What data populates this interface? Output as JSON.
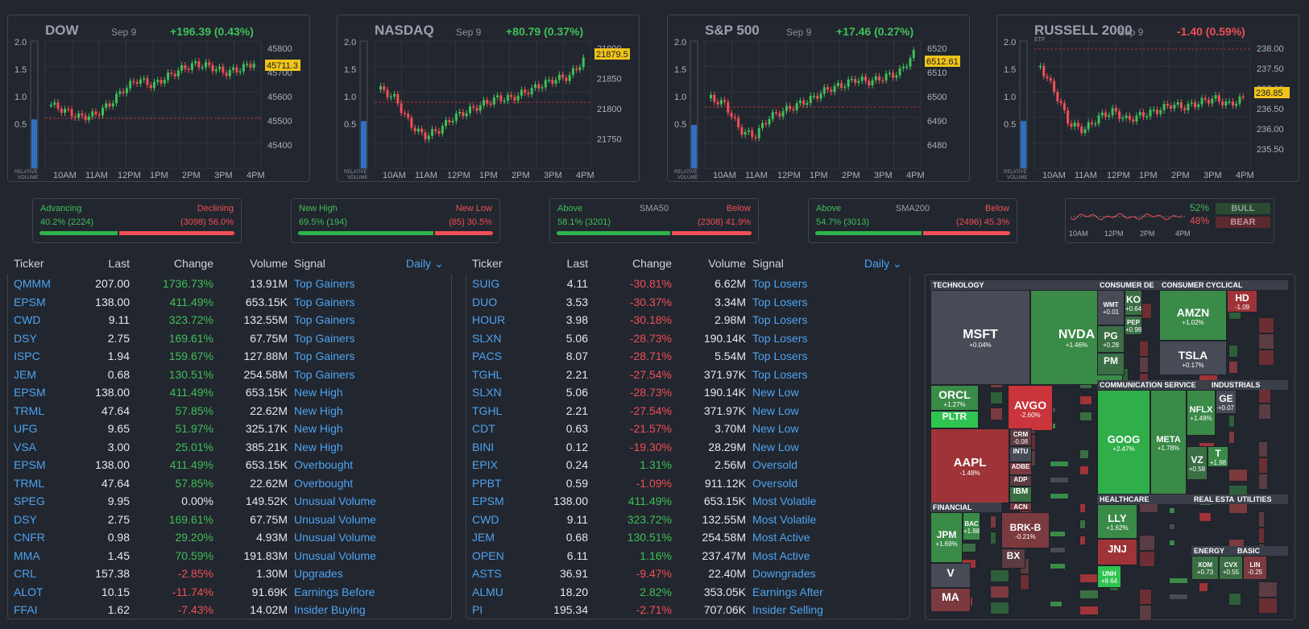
{
  "charts": [
    {
      "name": "DOW",
      "date": "Sep 9",
      "change": "+196.39 (0.43%)",
      "dir": "up",
      "etf": "",
      "price": "45711.3",
      "yticks": [
        "45800",
        "45700",
        "45600",
        "45500",
        "45400"
      ],
      "vticks": [
        "2.0",
        "1.5",
        "1.0",
        "0.5"
      ],
      "xticks": [
        "10AM",
        "11AM",
        "12PM",
        "1PM",
        "2PM",
        "3PM",
        "4PM"
      ],
      "vlabel": "RELATIVE VOLUME",
      "vol_level": 0.62
    },
    {
      "name": "NASDAQ",
      "date": "Sep 9",
      "change": "+80.79 (0.37%)",
      "dir": "up",
      "etf": "",
      "price": "21879.5",
      "yticks": [
        "21900",
        "21850",
        "21800",
        "21750"
      ],
      "vticks": [
        "2.0",
        "1.5",
        "1.0",
        "0.5"
      ],
      "xticks": [
        "10AM",
        "11AM",
        "12PM",
        "1PM",
        "2PM",
        "3PM",
        "4PM"
      ],
      "vlabel": "RELATIVE VOLUME",
      "vol_level": 0.6
    },
    {
      "name": "S&P 500",
      "date": "Sep 9",
      "change": "+17.46 (0.27%)",
      "dir": "up",
      "etf": "",
      "price": "6512.61",
      "yticks": [
        "6520",
        "6510",
        "6500",
        "6490",
        "6480"
      ],
      "vticks": [
        "2.0",
        "1.5",
        "1.0",
        "0.5"
      ],
      "xticks": [
        "10AM",
        "11AM",
        "12PM",
        "1PM",
        "2PM",
        "3PM",
        "4PM"
      ],
      "vlabel": "RELATIVE VOLUME",
      "vol_level": 0.55
    },
    {
      "name": "RUSSELL 2000",
      "date": "Sep 9",
      "change": "-1.40 (0.59%)",
      "dir": "down",
      "etf": "ETF",
      "price": "236.85",
      "yticks": [
        "238.00",
        "237.50",
        "237.00",
        "236.50",
        "236.00",
        "235.50"
      ],
      "vticks": [
        "2.0",
        "1.5",
        "1.0",
        "0.5"
      ],
      "xticks": [
        "10AM",
        "11AM",
        "12PM",
        "1PM",
        "2PM",
        "3PM",
        "4PM"
      ],
      "vlabel": "RELATIVE VOLUME",
      "vol_level": 0.6
    }
  ],
  "breadth": [
    {
      "left_label": "Advancing",
      "left_val": "40.2% (2224)",
      "center": "",
      "right_label": "Declining",
      "right_val": "(3098) 56.0%",
      "pct": 40.2
    },
    {
      "left_label": "New High",
      "left_val": "69.5% (194)",
      "center": "",
      "right_label": "New Low",
      "right_val": "(85) 30.5%",
      "pct": 69.5
    },
    {
      "left_label": "Above",
      "left_val": "58.1% (3201)",
      "center": "SMA50",
      "right_label": "Below",
      "right_val": "(2308) 41.9%",
      "pct": 58.1
    },
    {
      "left_label": "Above",
      "left_val": "54.7% (3013)",
      "center": "SMA200",
      "right_label": "Below",
      "right_val": "(2496) 45.3%",
      "pct": 54.7
    }
  ],
  "sentiment": {
    "bull_pct": "52%",
    "bear_pct": "48%",
    "bull": "BULL",
    "bear": "BEAR",
    "xticks": [
      "10AM",
      "12PM",
      "2PM",
      "4PM"
    ]
  },
  "table_headers": {
    "ticker": "Ticker",
    "last": "Last",
    "change": "Change",
    "volume": "Volume",
    "signal": "Signal",
    "period": "Daily"
  },
  "left_table": [
    [
      "QMMM",
      "207.00",
      "1736.73%",
      "13.91M",
      "Top Gainers",
      "up"
    ],
    [
      "EPSM",
      "138.00",
      "411.49%",
      "653.15K",
      "Top Gainers",
      "up"
    ],
    [
      "CWD",
      "9.11",
      "323.72%",
      "132.55M",
      "Top Gainers",
      "up"
    ],
    [
      "DSY",
      "2.75",
      "169.61%",
      "67.75M",
      "Top Gainers",
      "up"
    ],
    [
      "ISPC",
      "1.94",
      "159.67%",
      "127.88M",
      "Top Gainers",
      "up"
    ],
    [
      "JEM",
      "0.68",
      "130.51%",
      "254.58M",
      "Top Gainers",
      "up"
    ],
    [
      "EPSM",
      "138.00",
      "411.49%",
      "653.15K",
      "New High",
      "up"
    ],
    [
      "TRML",
      "47.64",
      "57.85%",
      "22.62M",
      "New High",
      "up"
    ],
    [
      "UFG",
      "9.65",
      "51.97%",
      "325.17K",
      "New High",
      "up"
    ],
    [
      "VSA",
      "3.00",
      "25.01%",
      "385.21K",
      "New High",
      "up"
    ],
    [
      "EPSM",
      "138.00",
      "411.49%",
      "653.15K",
      "Overbought",
      "up"
    ],
    [
      "TRML",
      "47.64",
      "57.85%",
      "22.62M",
      "Overbought",
      "up"
    ],
    [
      "SPEG",
      "9.95",
      "0.00%",
      "149.52K",
      "Unusual Volume",
      "flat"
    ],
    [
      "DSY",
      "2.75",
      "169.61%",
      "67.75M",
      "Unusual Volume",
      "up"
    ],
    [
      "CNFR",
      "0.98",
      "29.20%",
      "4.93M",
      "Unusual Volume",
      "up"
    ],
    [
      "MMA",
      "1.45",
      "70.59%",
      "191.83M",
      "Unusual Volume",
      "up"
    ],
    [
      "CRL",
      "157.38",
      "-2.85%",
      "1.30M",
      "Upgrades",
      "down"
    ],
    [
      "ALOT",
      "10.15",
      "-11.74%",
      "91.69K",
      "Earnings Before",
      "down"
    ],
    [
      "FFAI",
      "1.62",
      "-7.43%",
      "14.02M",
      "Insider Buying",
      "down"
    ]
  ],
  "right_table": [
    [
      "SUIG",
      "4.11",
      "-30.81%",
      "6.62M",
      "Top Losers",
      "down"
    ],
    [
      "DUO",
      "3.53",
      "-30.37%",
      "3.34M",
      "Top Losers",
      "down"
    ],
    [
      "HOUR",
      "3.98",
      "-30.18%",
      "2.98M",
      "Top Losers",
      "down"
    ],
    [
      "SLXN",
      "5.06",
      "-28.73%",
      "190.14K",
      "Top Losers",
      "down"
    ],
    [
      "PACS",
      "8.07",
      "-28.71%",
      "5.54M",
      "Top Losers",
      "down"
    ],
    [
      "TGHL",
      "2.21",
      "-27.54%",
      "371.97K",
      "Top Losers",
      "down"
    ],
    [
      "SLXN",
      "5.06",
      "-28.73%",
      "190.14K",
      "New Low",
      "down"
    ],
    [
      "TGHL",
      "2.21",
      "-27.54%",
      "371.97K",
      "New Low",
      "down"
    ],
    [
      "CDT",
      "0.63",
      "-21.57%",
      "3.70M",
      "New Low",
      "down"
    ],
    [
      "BINI",
      "0.12",
      "-19.30%",
      "28.29M",
      "New Low",
      "down"
    ],
    [
      "EPIX",
      "0.24",
      "1.31%",
      "2.56M",
      "Oversold",
      "up"
    ],
    [
      "PPBT",
      "0.59",
      "-1.09%",
      "911.12K",
      "Oversold",
      "down"
    ],
    [
      "EPSM",
      "138.00",
      "411.49%",
      "653.15K",
      "Most Volatile",
      "up"
    ],
    [
      "CWD",
      "9.11",
      "323.72%",
      "132.55M",
      "Most Volatile",
      "up"
    ],
    [
      "JEM",
      "0.68",
      "130.51%",
      "254.58M",
      "Most Active",
      "up"
    ],
    [
      "OPEN",
      "6.11",
      "1.16%",
      "237.47M",
      "Most Active",
      "up"
    ],
    [
      "ASTS",
      "36.91",
      "-9.47%",
      "22.40M",
      "Downgrades",
      "down"
    ],
    [
      "ALMU",
      "18.20",
      "2.82%",
      "353.05K",
      "Earnings After",
      "up"
    ],
    [
      "PI",
      "195.34",
      "-2.71%",
      "707.06K",
      "Insider Selling",
      "down"
    ]
  ],
  "colors": {
    "up": "#3fbf58",
    "down": "#ef4f55",
    "link": "#4ea3f0",
    "bg": "#22262f"
  },
  "heatmap": {
    "sectors": [
      "TECHNOLOGY",
      "CONSUMER DE",
      "CONSUMER CYCLICAL",
      "COMMUNICATION SERVICE",
      "INDUSTRIALS",
      "FINANCIAL",
      "HEALTHCARE",
      "REAL ESTA",
      "UTILITIES",
      "ENERGY",
      "BASIC"
    ],
    "tiles": [
      {
        "n": "MSFT",
        "p": "+0.04%",
        "c": "#474b56"
      },
      {
        "n": "NVDA",
        "p": "+1.46%",
        "c": "#3a8a48"
      },
      {
        "n": "ORCL",
        "p": "+1.27%",
        "c": "#3a8a48"
      },
      {
        "n": "PLTR",
        "p": "",
        "c": "#2fc350"
      },
      {
        "n": "AVGO",
        "p": "-2.60%",
        "c": "#c9353b"
      },
      {
        "n": "AAPL",
        "p": "-1.48%",
        "c": "#9e3438"
      },
      {
        "n": "CRM",
        "p": "-0.08",
        "c": "#5a3c42"
      },
      {
        "n": "INTU",
        "p": "",
        "c": "#474b56"
      },
      {
        "n": "ADBE",
        "p": "",
        "c": "#7a3a3e"
      },
      {
        "n": "ADP",
        "p": "",
        "c": "#5a3c42"
      },
      {
        "n": "IBM",
        "p": "",
        "c": "#3a6e43"
      },
      {
        "n": "ACN",
        "p": "",
        "c": "#7a3a3e"
      },
      {
        "n": "AMZN",
        "p": "+1.02%",
        "c": "#3a8a48"
      },
      {
        "n": "TSLA",
        "p": "+0.17%",
        "c": "#474b56"
      },
      {
        "n": "HD",
        "p": "-1.09",
        "c": "#9e3438"
      },
      {
        "n": "PG",
        "p": "+0.28",
        "c": "#3a6e43"
      },
      {
        "n": "WMT",
        "p": "+0.01",
        "c": "#474b56"
      },
      {
        "n": "KO",
        "p": "+0.64",
        "c": "#3a6e43"
      },
      {
        "n": "PEP",
        "p": "+0.98",
        "c": "#3a6e43"
      },
      {
        "n": "PM",
        "p": "",
        "c": "#3a6e43"
      },
      {
        "n": "GOOG",
        "p": "+2.47%",
        "c": "#2fae49"
      },
      {
        "n": "META",
        "p": "+1.78%",
        "c": "#3a8a48"
      },
      {
        "n": "NFLX",
        "p": "+1.49%",
        "c": "#3a8a48"
      },
      {
        "n": "VZ",
        "p": "+0.58",
        "c": "#3a6e43"
      },
      {
        "n": "T",
        "p": "+1.98",
        "c": "#3a8a48"
      },
      {
        "n": "GE",
        "p": "+0.07",
        "c": "#474b56"
      },
      {
        "n": "JPM",
        "p": "+1.69%",
        "c": "#3a8a48"
      },
      {
        "n": "BRK-B",
        "p": "-0.21%",
        "c": "#7a3a3e"
      },
      {
        "n": "V",
        "p": "",
        "c": "#474b56"
      },
      {
        "n": "MA",
        "p": "",
        "c": "#7a3a3e"
      },
      {
        "n": "BAC",
        "p": "+1.88",
        "c": "#3a8a48"
      },
      {
        "n": "BX",
        "p": "",
        "c": "#5a3c42"
      },
      {
        "n": "LLY",
        "p": "+1.62%",
        "c": "#3a8a48"
      },
      {
        "n": "JNJ",
        "p": "",
        "c": "#9e3438"
      },
      {
        "n": "UNH",
        "p": "+8.64",
        "c": "#2fc350"
      },
      {
        "n": "XOM",
        "p": "+0.73",
        "c": "#3a6e43"
      },
      {
        "n": "CVX",
        "p": "+0.55",
        "c": "#3a6e43"
      },
      {
        "n": "LIN",
        "p": "-0.25",
        "c": "#7a3a3e"
      }
    ]
  }
}
